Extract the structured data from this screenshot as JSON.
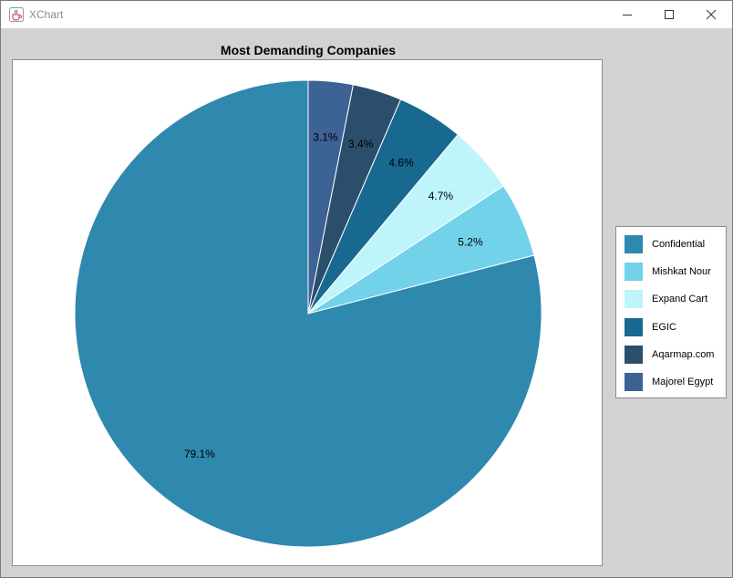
{
  "window": {
    "title": "XChart"
  },
  "chart_data": {
    "type": "pie",
    "title": "Most Demanding Companies",
    "legend_position": "right",
    "categories": [
      "Confidential",
      "Mishkat Nour",
      "Expand Cart",
      "EGIC",
      "Aqarmap.com",
      "Majorel Egypt"
    ],
    "values": [
      79.1,
      5.2,
      4.7,
      4.6,
      3.4,
      3.1
    ],
    "labels": [
      "79.1%",
      "5.2%",
      "4.7%",
      "4.6%",
      "3.4%",
      "3.1%"
    ],
    "colors": [
      "#2f88ae",
      "#72d2ea",
      "#bdf5fb",
      "#17698f",
      "#2b4e6d",
      "#3d6294"
    ],
    "slice_border_color": "#ffffff"
  },
  "icons": {
    "app": "java-cup-icon",
    "minimize": "minimize-icon",
    "maximize": "maximize-icon",
    "close": "close-icon"
  }
}
